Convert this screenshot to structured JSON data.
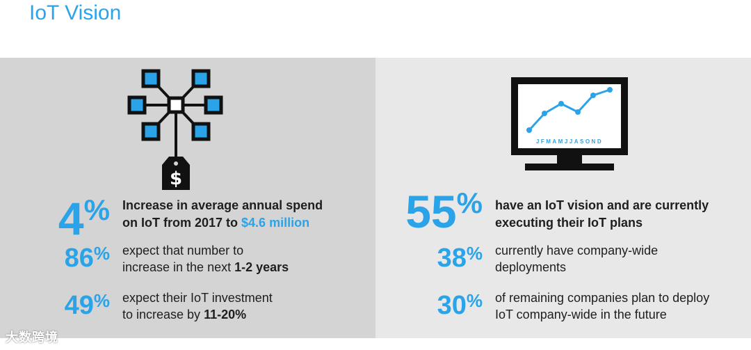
{
  "header": {
    "title": "IoT Vision"
  },
  "left": {
    "stat_main": {
      "value": "4",
      "unit": "%",
      "line1": "Increase in average annual spend",
      "line2_pre": "on IoT from 2017 to ",
      "line2_highlight": "$4.6 million"
    },
    "stat_2": {
      "value": "86",
      "unit": "%",
      "line1": "expect that number to",
      "line2_pre": "increase in the next ",
      "line2_bold": "1-2 years"
    },
    "stat_3": {
      "value": "49",
      "unit": "%",
      "line1": "expect their IoT investment",
      "line2_pre": "to increase by ",
      "line2_bold": "11-20%"
    }
  },
  "right": {
    "monitor_months": "JFMAMJJASOND",
    "stat_main": {
      "value": "55",
      "unit": "%",
      "line1": "have an IoT vision and are currently",
      "line2": "executing their IoT plans"
    },
    "stat_2": {
      "value": "38",
      "unit": "%",
      "line1": "currently have company-wide",
      "line2": "deployments"
    },
    "stat_3": {
      "value": "30",
      "unit": "%",
      "line1": "of remaining companies plan to deploy",
      "line2": "IoT company-wide in the future"
    }
  },
  "watermark": {
    "text": "大数跨境"
  },
  "colors": {
    "accent": "#2aa3e8",
    "left_bg": "#d4d4d4",
    "right_bg": "#e8e8e8",
    "text": "#1e1e1e"
  }
}
